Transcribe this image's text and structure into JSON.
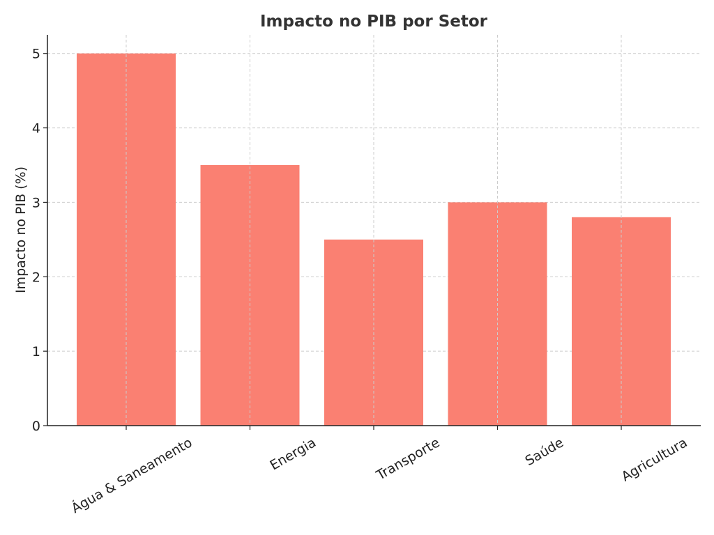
{
  "chart_data": {
    "type": "bar",
    "title": "Impacto no PIB por Setor",
    "xlabel": "",
    "ylabel": "Impacto no PIB (%)",
    "categories": [
      "Água & Saneamento",
      "Energia",
      "Transporte",
      "Saúde",
      "Agricultura"
    ],
    "values": [
      5.0,
      3.5,
      2.5,
      3.0,
      2.8
    ],
    "ylim": [
      0,
      5.25
    ],
    "yticks": [
      0,
      1,
      2,
      3,
      4,
      5
    ],
    "bar_color": "#fa8072",
    "grid": true,
    "legend": "none"
  }
}
